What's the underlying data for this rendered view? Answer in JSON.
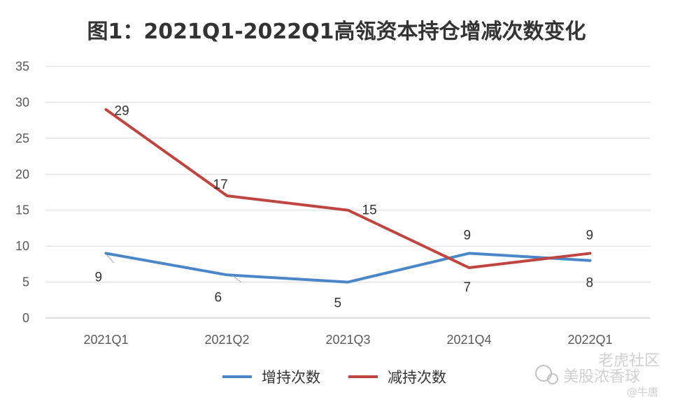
{
  "chart_data": {
    "type": "line",
    "title": "图1：2021Q1-2022Q1高瓴资本持仓增减次数变化",
    "categories": [
      "2021Q1",
      "2021Q2",
      "2021Q3",
      "2021Q4",
      "2022Q1"
    ],
    "series": [
      {
        "name": "增持次数",
        "color": "#4a86c8",
        "values": [
          9,
          6,
          5,
          9,
          8
        ]
      },
      {
        "name": "减持次数",
        "color": "#c0443f",
        "values": [
          29,
          17,
          15,
          7,
          9
        ]
      }
    ],
    "ylim": [
      0,
      35
    ],
    "yticks": [
      0,
      5,
      10,
      15,
      20,
      25,
      30,
      35
    ],
    "grid": true,
    "legend": "bottom"
  },
  "watermark": {
    "line1": "老虎社区",
    "line2": "美股浓香球",
    "line3": "@牛唐"
  }
}
